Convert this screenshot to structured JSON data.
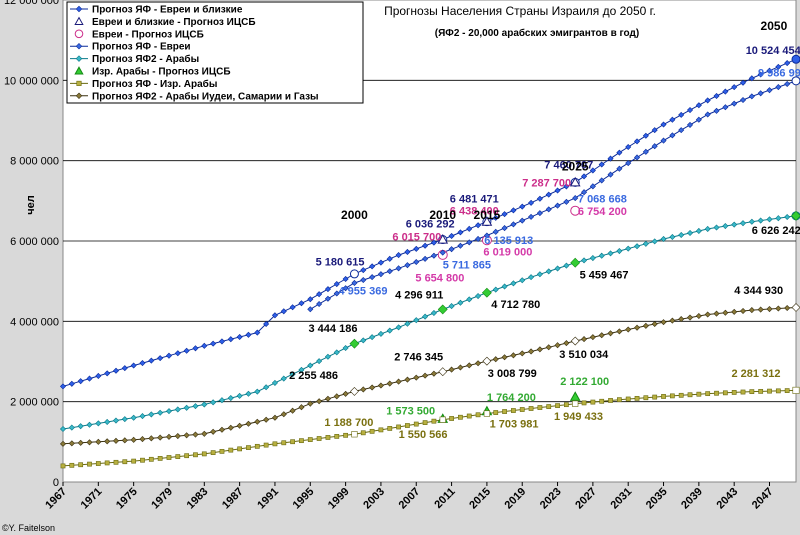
{
  "chart_data": {
    "type": "line",
    "title": "Прогнозы Населения Страны Израиля до 2050 г.",
    "subtitle": "(ЯФ2 - 20,000 арабских эмигрантов в год)",
    "ylabel": "чел",
    "xlabel": "",
    "credit": "©Y. Faitelson",
    "xlim": [
      1967,
      2050
    ],
    "ylim": [
      0,
      12000000
    ],
    "grid": true,
    "legend_position": "top-left",
    "x_ticks": [
      "1967",
      "1971",
      "1975",
      "1979",
      "1983",
      "1987",
      "1991",
      "1995",
      "1999",
      "2003",
      "2007",
      "2011",
      "2015",
      "2019",
      "2023",
      "2027",
      "2031",
      "2035",
      "2039",
      "2043",
      "2047"
    ],
    "y_ticks": [
      "0",
      "2 000 000",
      "4 000 000",
      "6 000 000",
      "8 000 000",
      "10 000 000",
      "12 000 000"
    ],
    "year_markers": [
      {
        "label": "2000",
        "x": 2000,
        "y": 6550000
      },
      {
        "label": "2010",
        "x": 2010,
        "y": 6550000
      },
      {
        "label": "2015",
        "x": 2015,
        "y": 6550000
      },
      {
        "label": "2025",
        "x": 2025,
        "y": 7750000
      },
      {
        "label": "2050",
        "x": 2047.5,
        "y": 11250000
      }
    ],
    "series": [
      {
        "name": "Прогноз ЯФ - Евреи и близкие",
        "color": "#2e5fe8",
        "edge": "#0a2a9a",
        "marker": "diamond",
        "points": [
          [
            1967,
            2380000
          ],
          [
            1975,
            2900000
          ],
          [
            1983,
            3390000
          ],
          [
            1989,
            3720000
          ],
          [
            1991,
            4150000
          ],
          [
            1995,
            4550000
          ],
          [
            2000,
            5180615
          ],
          [
            2005,
            5650000
          ],
          [
            2010,
            6036292
          ],
          [
            2015,
            6481471
          ],
          [
            2020,
            6950000
          ],
          [
            2025,
            7460707
          ],
          [
            2030,
            8200000
          ],
          [
            2035,
            8900000
          ],
          [
            2040,
            9500000
          ],
          [
            2045,
            10050000
          ],
          [
            2050,
            10524454
          ]
        ],
        "highlight": [
          2000,
          2010,
          2015,
          2025
        ]
      },
      {
        "name": "Евреи и близкие - Прогноз ИЦСБ",
        "color": "#ffffff",
        "edge": "#1a1a7a",
        "marker": "triangle-open",
        "points": [
          [
            2010,
            6036292
          ],
          [
            2015,
            6481471
          ],
          [
            2025,
            7460707
          ]
        ]
      },
      {
        "name": "Евреи - Прогноз ИЦСБ",
        "color": "#ffffff",
        "edge": "#cc2e8a",
        "marker": "circle-open",
        "points": [
          [
            2010,
            5654800
          ],
          [
            2015,
            6019000
          ],
          [
            2025,
            6754200
          ]
        ]
      },
      {
        "name": "Прогноз ЯФ - Евреи",
        "color": "#3a6ae0",
        "edge": "#0a2a9a",
        "marker": "diamond",
        "points": [
          [
            1995,
            4300000
          ],
          [
            2000,
            4955369
          ],
          [
            2005,
            5320000
          ],
          [
            2010,
            5711865
          ],
          [
            2015,
            6135913
          ],
          [
            2020,
            6600000
          ],
          [
            2025,
            7068668
          ],
          [
            2030,
            7800000
          ],
          [
            2035,
            8500000
          ],
          [
            2040,
            9150000
          ],
          [
            2045,
            9600000
          ],
          [
            2050,
            9986991
          ]
        ],
        "highlight": [
          2050
        ]
      },
      {
        "name": "Прогноз ЯФ2 - Арабы",
        "color": "#3ab8c8",
        "edge": "#0a7a8a",
        "marker": "diamond",
        "points": [
          [
            1967,
            1320000
          ],
          [
            1975,
            1600000
          ],
          [
            1983,
            1930000
          ],
          [
            1989,
            2250000
          ],
          [
            1995,
            2900000
          ],
          [
            2000,
            3444186
          ],
          [
            2005,
            3850000
          ],
          [
            2010,
            4296911
          ],
          [
            2015,
            4712780
          ],
          [
            2020,
            5100000
          ],
          [
            2025,
            5459467
          ],
          [
            2030,
            5750000
          ],
          [
            2035,
            6050000
          ],
          [
            2040,
            6300000
          ],
          [
            2045,
            6480000
          ],
          [
            2050,
            6626242
          ]
        ]
      },
      {
        "name": "Изр. Арабы - Прогноз ИЦСБ",
        "color": "#33cc33",
        "edge": "#138a13",
        "marker": "triangle",
        "points": [
          [
            2010,
            1573500
          ],
          [
            2015,
            1764200
          ],
          [
            2025,
            2122100
          ]
        ]
      },
      {
        "name": "Прогноз ЯФ - Изр. Арабы",
        "color": "#b8b040",
        "edge": "#6a6a10",
        "marker": "square",
        "points": [
          [
            1967,
            400000
          ],
          [
            1975,
            520000
          ],
          [
            1983,
            700000
          ],
          [
            1991,
            950000
          ],
          [
            2000,
            1188700
          ],
          [
            2005,
            1370000
          ],
          [
            2010,
            1550566
          ],
          [
            2015,
            1703981
          ],
          [
            2020,
            1830000
          ],
          [
            2025,
            1949433
          ],
          [
            2030,
            2050000
          ],
          [
            2035,
            2130000
          ],
          [
            2040,
            2200000
          ],
          [
            2045,
            2250000
          ],
          [
            2050,
            2281312
          ]
        ]
      },
      {
        "name": "Прогноз ЯФ2 - Арабы Иудеи, Самарии и Газы",
        "color": "#8a7a3a",
        "edge": "#3a3010",
        "marker": "diamond",
        "points": [
          [
            1967,
            950000
          ],
          [
            1975,
            1050000
          ],
          [
            1983,
            1200000
          ],
          [
            1991,
            1600000
          ],
          [
            1995,
            1950000
          ],
          [
            2000,
            2255486
          ],
          [
            2005,
            2500000
          ],
          [
            2010,
            2746345
          ],
          [
            2015,
            3008799
          ],
          [
            2020,
            3250000
          ],
          [
            2025,
            3510034
          ],
          [
            2030,
            3750000
          ],
          [
            2035,
            3980000
          ],
          [
            2040,
            4170000
          ],
          [
            2045,
            4280000
          ],
          [
            2050,
            4344930
          ]
        ]
      }
    ],
    "annotations": [
      {
        "text": "10 524 454",
        "color": "#1a1a7a",
        "x": 2044.3,
        "y": 10660000
      },
      {
        "text": "9 986 991",
        "color": "#3a6ae0",
        "x": 2045.7,
        "y": 10100000
      },
      {
        "text": "7 460 707",
        "color": "#1a1a7a",
        "x": 2021.5,
        "y": 7800000
      },
      {
        "text": "7 287 700",
        "color": "#cc2e8a",
        "x": 2019.0,
        "y": 7360000
      },
      {
        "text": "7 068 668",
        "color": "#3a6ae0",
        "x": 2025.3,
        "y": 6960000
      },
      {
        "text": "6 754 200",
        "color": "#d43aa8",
        "x": 2025.3,
        "y": 6650000
      },
      {
        "text": "6 481 471",
        "color": "#1a1a7a",
        "x": 2010.8,
        "y": 6960000
      },
      {
        "text": "6 438 400",
        "color": "#cc2e8a",
        "x": 2010.8,
        "y": 6660000
      },
      {
        "text": "6 036 292",
        "color": "#1a1a7a",
        "x": 2005.8,
        "y": 6330000
      },
      {
        "text": "6 015 700",
        "color": "#cc2e8a",
        "x": 2004.3,
        "y": 6010000
      },
      {
        "text": "6 135 913",
        "color": "#3a6ae0",
        "x": 2014.7,
        "y": 5930000
      },
      {
        "text": "6 019 000",
        "color": "#d43aa8",
        "x": 2014.6,
        "y": 5640000
      },
      {
        "text": "5 711 865",
        "color": "#3a6ae0",
        "x": 2010.0,
        "y": 5310000
      },
      {
        "text": "5 654 800",
        "color": "#d43aa8",
        "x": 2006.9,
        "y": 4990000
      },
      {
        "text": "5 180 615",
        "color": "#1a1a7a",
        "x": 1995.6,
        "y": 5390000
      },
      {
        "text": "4 955 369",
        "color": "#3a6ae0",
        "x": 1998.2,
        "y": 4670000
      },
      {
        "text": "6 626 242",
        "color": "#000000",
        "x": 2045.0,
        "y": 6170000
      },
      {
        "text": "5 459 467",
        "color": "#000000",
        "x": 2025.5,
        "y": 5070000
      },
      {
        "text": "4 712 780",
        "color": "#000000",
        "x": 2015.5,
        "y": 4330000
      },
      {
        "text": "4 296 911",
        "color": "#000000",
        "x": 2004.6,
        "y": 4570000
      },
      {
        "text": "3 444 186",
        "color": "#000000",
        "x": 1994.8,
        "y": 3730000
      },
      {
        "text": "4 344 930",
        "color": "#000000",
        "x": 2043.0,
        "y": 4680000
      },
      {
        "text": "3 510 034",
        "color": "#000000",
        "x": 2023.2,
        "y": 3090000
      },
      {
        "text": "3 008 799",
        "color": "#000000",
        "x": 2015.1,
        "y": 2620000
      },
      {
        "text": "2 746 345",
        "color": "#000000",
        "x": 2004.5,
        "y": 3030000
      },
      {
        "text": "2 255 486",
        "color": "#000000",
        "x": 1992.6,
        "y": 2560000
      },
      {
        "text": "2 281 312",
        "color": "#7a7010",
        "x": 2042.7,
        "y": 2620000
      },
      {
        "text": "2 122 100",
        "color": "#33aa33",
        "x": 2023.3,
        "y": 2420000
      },
      {
        "text": "1 949 433",
        "color": "#7a7010",
        "x": 2022.6,
        "y": 1540000
      },
      {
        "text": "1 764 200",
        "color": "#33aa33",
        "x": 2015.0,
        "y": 2020000
      },
      {
        "text": "1 703 981",
        "color": "#7a7010",
        "x": 2015.3,
        "y": 1360000
      },
      {
        "text": "1 573 500",
        "color": "#33aa33",
        "x": 2003.6,
        "y": 1680000
      },
      {
        "text": "1 550 566",
        "color": "#7a7010",
        "x": 2005.0,
        "y": 1100000
      },
      {
        "text": "1 188 700",
        "color": "#7a7010",
        "x": 1996.6,
        "y": 1400000
      }
    ]
  }
}
